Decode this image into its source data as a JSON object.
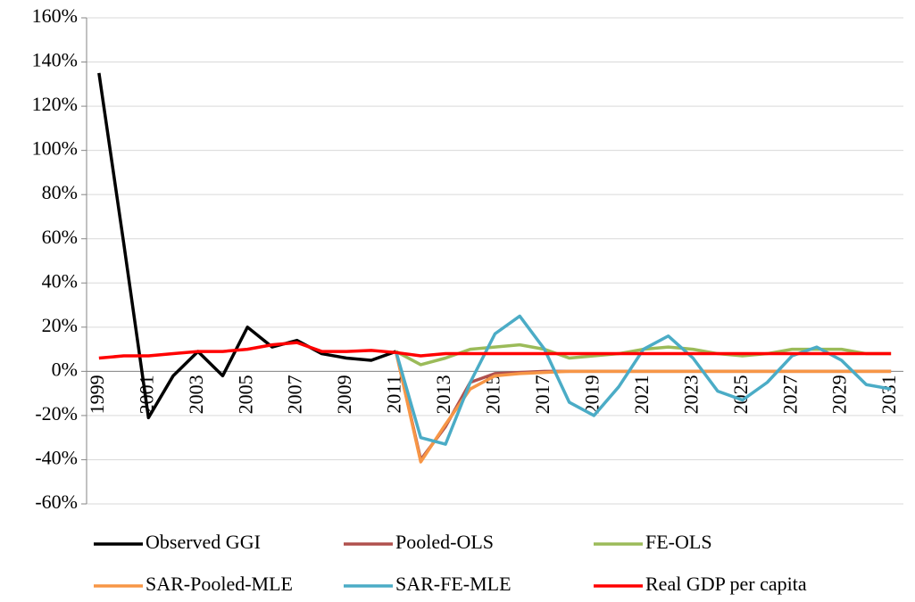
{
  "chart_data": {
    "type": "line",
    "categories": [
      "1999",
      null,
      "2001",
      null,
      "2003",
      null,
      "2005",
      null,
      "2007",
      null,
      "2009",
      null,
      "2011",
      null,
      "2013",
      null,
      "2015",
      null,
      "2017",
      null,
      "2019",
      null,
      "2021",
      null,
      "2023",
      null,
      "2025",
      null,
      "2027",
      null,
      "2029",
      null,
      "2031"
    ],
    "ylim": [
      -60,
      160
    ],
    "yticks": [
      {
        "value": -60,
        "label": "-60%"
      },
      {
        "value": -40,
        "label": "-40%"
      },
      {
        "value": -20,
        "label": "-20%"
      },
      {
        "value": 0,
        "label": "0%"
      },
      {
        "value": 20,
        "label": "20%"
      },
      {
        "value": 40,
        "label": "40%"
      },
      {
        "value": 60,
        "label": "60%"
      },
      {
        "value": 80,
        "label": "80%"
      },
      {
        "value": 100,
        "label": "100%"
      },
      {
        "value": 120,
        "label": "120%"
      },
      {
        "value": 140,
        "label": "140%"
      },
      {
        "value": 160,
        "label": "160%"
      }
    ],
    "grid": true,
    "series": [
      {
        "name": "Observed GGI",
        "color": "#000000",
        "values": [
          135,
          58,
          -21,
          -2,
          9,
          -2,
          20,
          11,
          14,
          8,
          6,
          5,
          9,
          null,
          null,
          null,
          null,
          null,
          null,
          null,
          null,
          null,
          null,
          null,
          null,
          null,
          null,
          null,
          null,
          null,
          null,
          null,
          null
        ]
      },
      {
        "name": "Pooled-OLS",
        "color": "#b0504d",
        "values": [
          null,
          null,
          null,
          null,
          null,
          null,
          null,
          null,
          null,
          null,
          null,
          null,
          9,
          -40,
          -25,
          -5,
          -1,
          -0.5,
          0,
          0,
          0,
          0,
          0,
          0,
          0,
          0,
          0,
          0,
          0,
          0,
          0,
          0,
          0
        ]
      },
      {
        "name": "FE-OLS",
        "color": "#9bbb59",
        "values": [
          null,
          null,
          null,
          null,
          null,
          null,
          null,
          null,
          null,
          null,
          null,
          null,
          9,
          3,
          6,
          10,
          11,
          12,
          10,
          6,
          7,
          8,
          10,
          11,
          10,
          8,
          7,
          8,
          10,
          10,
          10,
          8,
          8
        ]
      },
      {
        "name": "SAR-Pooled-MLE",
        "color": "#f79646",
        "values": [
          null,
          null,
          null,
          null,
          null,
          null,
          null,
          null,
          null,
          null,
          null,
          null,
          9,
          -41,
          -24,
          -8,
          -2,
          -1,
          -0.5,
          0,
          0,
          0,
          0,
          0,
          0,
          0,
          0,
          0,
          0,
          0,
          0,
          0,
          0
        ]
      },
      {
        "name": "SAR-FE-MLE",
        "color": "#4bacc6",
        "values": [
          null,
          null,
          null,
          null,
          null,
          null,
          null,
          null,
          null,
          null,
          null,
          null,
          9,
          -30,
          -33,
          -5,
          17,
          25,
          10,
          -14,
          -20,
          -7,
          10,
          16,
          6,
          -9,
          -13,
          -5,
          7,
          11,
          5,
          -6,
          -8
        ]
      },
      {
        "name": "Real GDP per capita",
        "color": "#ff0000",
        "values": [
          6,
          7,
          7,
          8,
          9,
          9,
          10,
          12,
          13,
          9,
          9,
          9.5,
          8.5,
          7,
          8,
          8,
          8,
          8,
          8,
          8,
          8,
          8,
          8,
          8,
          8,
          8,
          8,
          8,
          8,
          8,
          8,
          8,
          8
        ]
      }
    ]
  }
}
